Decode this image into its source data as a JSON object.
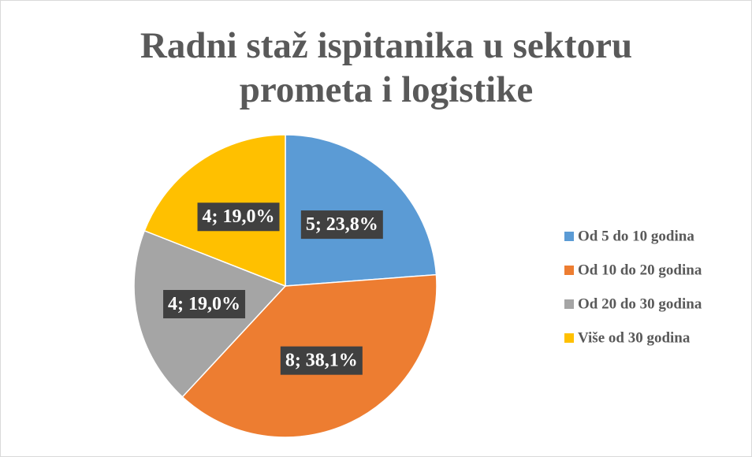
{
  "chart_data": {
    "type": "pie",
    "title": "Radni staž ispitanika u sektoru prometa i logistike",
    "categories": [
      "Od 5 do 10 godina",
      "Od 10 do 20 godina",
      "Od 20 do 30 godina",
      "Više od 30 godina"
    ],
    "values": [
      5,
      8,
      4,
      4
    ],
    "value_labels": [
      "5; 23,8%",
      "8; 38,1%",
      "4; 19,0%",
      "4; 19,0%"
    ],
    "colors": [
      "#5b9bd5",
      "#ed7d31",
      "#a5a5a5",
      "#ffc000"
    ],
    "legend": "right"
  }
}
